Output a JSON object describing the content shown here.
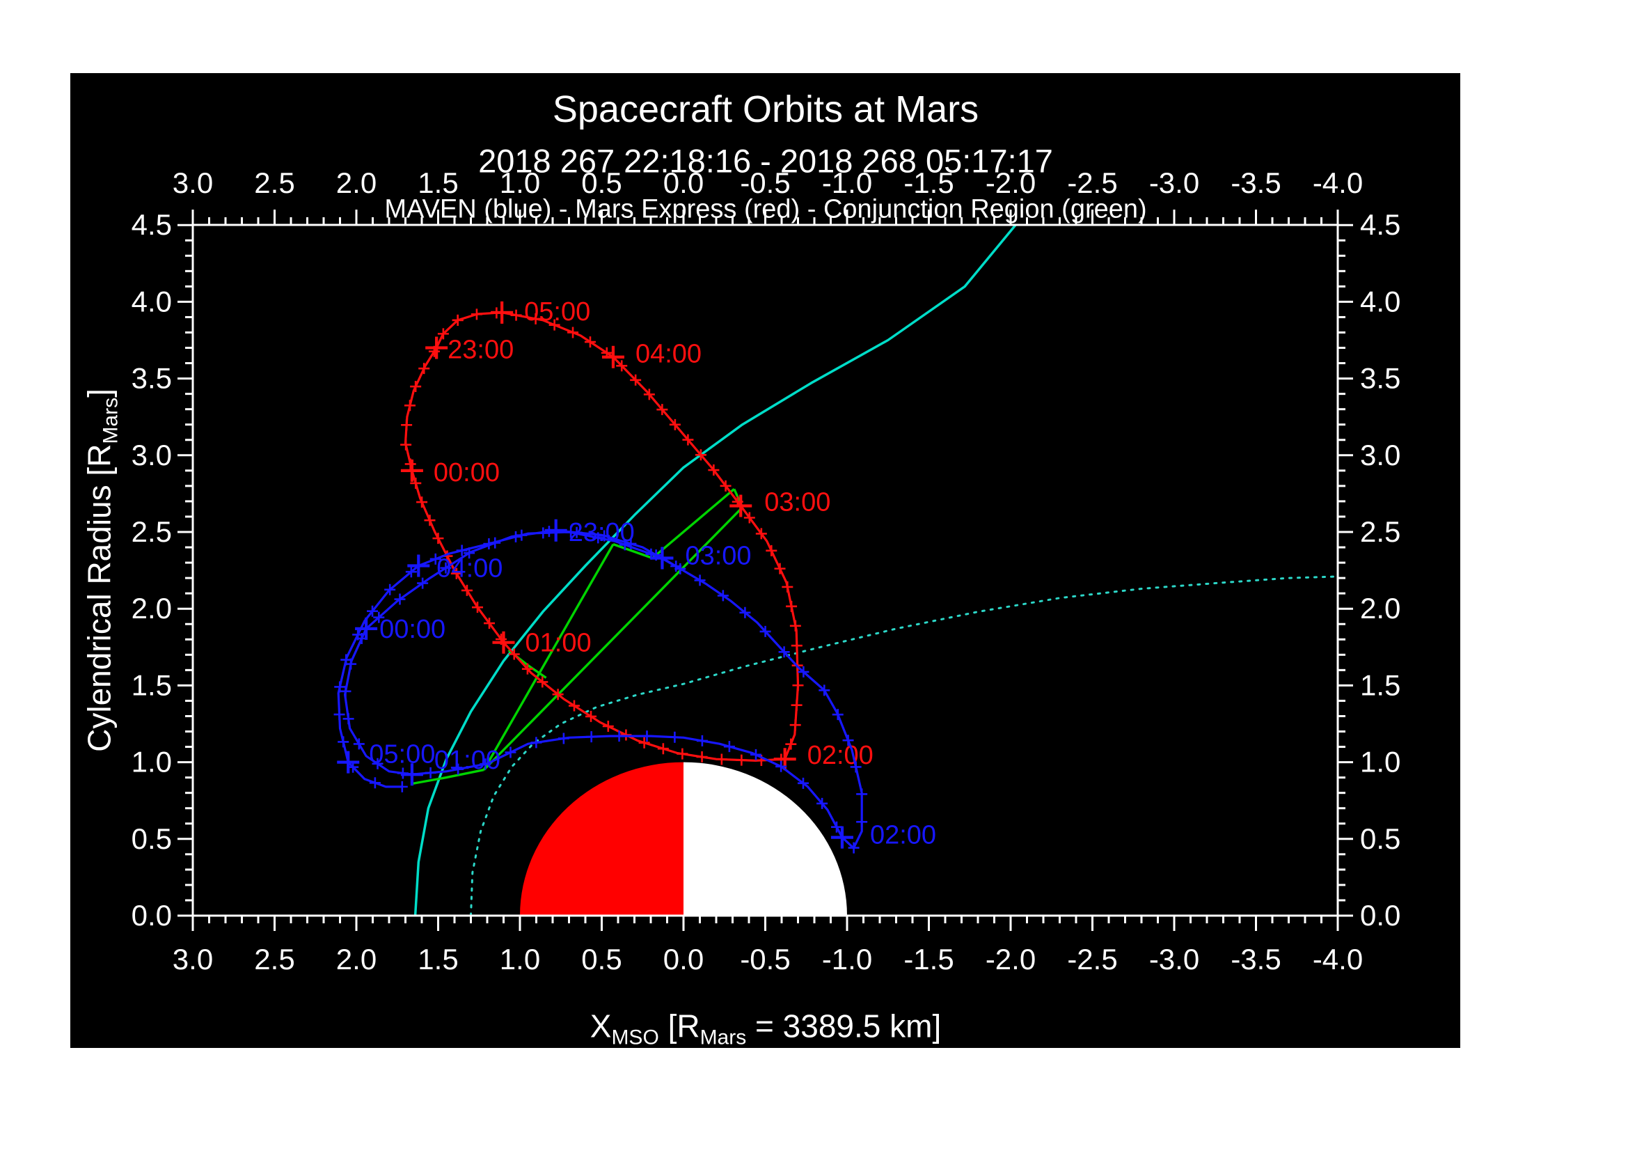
{
  "header": {
    "title": "Spacecraft Orbits at Mars",
    "date_range": "2018 267 22:18:16 - 2018 268 05:17:17",
    "legend": "MAVEN (blue) - Mars Express (red) - Conjunction Region (green)"
  },
  "axes": {
    "x": {
      "parts": [
        "X",
        "MSO",
        " [R",
        "Mars",
        " = 3389.5 km]"
      ],
      "range": [
        3.0,
        -4.0
      ],
      "major_step": 0.5,
      "minor_step": 0.1,
      "tick_labels": [
        "3.0",
        "2.5",
        "2.0",
        "1.5",
        "1.0",
        "0.5",
        "0.0",
        "-0.5",
        "-1.0",
        "-1.5",
        "-2.0",
        "-2.5",
        "-3.0",
        "-3.5",
        "-4.0"
      ]
    },
    "y": {
      "parts": [
        "Cylendrical Radius [R",
        "Mars",
        "]"
      ],
      "range": [
        0.0,
        4.5
      ],
      "major_step": 0.5,
      "minor_step": 0.1,
      "tick_labels": [
        "0.0",
        "0.5",
        "1.0",
        "1.5",
        "2.0",
        "2.5",
        "3.0",
        "3.5",
        "4.0",
        "4.5"
      ]
    }
  },
  "colors": {
    "background_page": "#ffffff",
    "background_plot": "#000000",
    "axis": "#ffffff",
    "maven": "#1717ff",
    "mars_express": "#ff0f0f",
    "conjunction": "#00d400",
    "bow_shock": "#00ddc8",
    "boundary_dotted": "#2cd7c8",
    "mars_dayside": "#ff0000",
    "mars_nightside": "#ffffff"
  },
  "chart_data": {
    "type": "line",
    "title": "Spacecraft Orbits at Mars",
    "subtitle": "2018 267 22:18:16 - 2018 268 05:17:17",
    "legend_line": "MAVEN (blue) - Mars Express (red) - Conjunction Region (green)",
    "xlabel": "X_MSO [R_Mars = 3389.5 km]",
    "ylabel": "Cylendrical Radius [R_Mars]",
    "xlim": [
      3.0,
      -4.0
    ],
    "ylim": [
      0.0,
      4.5
    ],
    "grid": false,
    "mars": {
      "center": [
        0.0,
        0.0
      ],
      "radius_rmars": 1.0,
      "dayside_half": "left (+X, red)",
      "nightside_half": "right (-X, white)"
    },
    "series": [
      {
        "name": "Mars Express",
        "color_key": "mars_express",
        "minor_tick_count": 66,
        "points": [
          [
            1.38,
            3.88
          ],
          [
            1.47,
            3.79
          ],
          [
            1.51,
            3.7
          ],
          [
            1.58,
            3.58
          ],
          [
            1.65,
            3.42
          ],
          [
            1.69,
            3.25
          ],
          [
            1.7,
            3.08
          ],
          [
            1.66,
            2.9
          ],
          [
            1.61,
            2.72
          ],
          [
            1.52,
            2.5
          ],
          [
            1.4,
            2.25
          ],
          [
            1.26,
            2.01
          ],
          [
            1.1,
            1.78
          ],
          [
            0.93,
            1.58
          ],
          [
            0.73,
            1.41
          ],
          [
            0.51,
            1.26
          ],
          [
            0.28,
            1.14
          ],
          [
            0.04,
            1.06
          ],
          [
            -0.2,
            1.02
          ],
          [
            -0.44,
            1.01
          ],
          [
            -0.62,
            1.02
          ],
          [
            -0.68,
            1.18
          ],
          [
            -0.7,
            1.5
          ],
          [
            -0.69,
            1.86
          ],
          [
            -0.63,
            2.17
          ],
          [
            -0.51,
            2.44
          ],
          [
            -0.35,
            2.67
          ],
          [
            -0.18,
            2.91
          ],
          [
            0.02,
            3.16
          ],
          [
            0.22,
            3.41
          ],
          [
            0.43,
            3.64
          ],
          [
            0.63,
            3.78
          ],
          [
            0.86,
            3.88
          ],
          [
            1.11,
            3.93
          ],
          [
            1.26,
            3.92
          ],
          [
            1.38,
            3.88
          ]
        ],
        "hour_markers": [
          {
            "t": "23:00",
            "x": 1.51,
            "y": 3.7,
            "dx": 16,
            "dy": 2
          },
          {
            "t": "00:00",
            "x": 1.66,
            "y": 2.9,
            "dx": 31,
            "dy": 2
          },
          {
            "t": "01:00",
            "x": 1.1,
            "y": 1.78,
            "dx": 31,
            "dy": 0
          },
          {
            "t": "02:00",
            "x": -0.62,
            "y": 1.02,
            "dx": 32,
            "dy": -6
          },
          {
            "t": "03:00",
            "x": -0.35,
            "y": 2.67,
            "dx": 34,
            "dy": -6
          },
          {
            "t": "04:00",
            "x": 0.43,
            "y": 3.64,
            "dx": 32,
            "dy": -5
          },
          {
            "t": "05:00",
            "x": 1.11,
            "y": 3.93,
            "dx": 32,
            "dy": -2
          }
        ]
      },
      {
        "name": "MAVEN",
        "color_key": "maven",
        "minor_tick_count": 70,
        "points": [
          [
            0.02,
            2.26
          ],
          [
            0.25,
            2.4
          ],
          [
            0.5,
            2.48
          ],
          [
            0.78,
            2.51
          ],
          [
            1.05,
            2.47
          ],
          [
            1.3,
            2.37
          ],
          [
            1.55,
            2.2
          ],
          [
            1.75,
            2.05
          ],
          [
            1.94,
            1.87
          ],
          [
            2.03,
            1.66
          ],
          [
            2.07,
            1.44
          ],
          [
            2.04,
            1.22
          ],
          [
            1.94,
            1.04
          ],
          [
            1.8,
            0.94
          ],
          [
            1.66,
            0.92
          ],
          [
            1.45,
            0.94
          ],
          [
            1.2,
            0.99
          ],
          [
            0.95,
            1.12
          ],
          [
            0.7,
            1.16
          ],
          [
            0.45,
            1.17
          ],
          [
            0.2,
            1.17
          ],
          [
            0.0,
            1.16
          ],
          [
            -0.22,
            1.12
          ],
          [
            -0.42,
            1.06
          ],
          [
            -0.6,
            0.97
          ],
          [
            -0.76,
            0.84
          ],
          [
            -0.88,
            0.69
          ],
          [
            -0.97,
            0.51
          ],
          [
            -1.04,
            0.44
          ],
          [
            -1.09,
            0.55
          ],
          [
            -1.09,
            0.8
          ],
          [
            -1.03,
            1.08
          ],
          [
            -0.94,
            1.32
          ],
          [
            -0.86,
            1.47
          ],
          [
            -0.7,
            1.62
          ],
          [
            -0.45,
            1.91
          ],
          [
            -0.29,
            2.05
          ],
          [
            -0.14,
            2.16
          ],
          [
            0.13,
            2.33
          ],
          [
            0.42,
            2.44
          ],
          [
            0.7,
            2.5
          ],
          [
            0.95,
            2.49
          ],
          [
            1.2,
            2.42
          ],
          [
            1.43,
            2.36
          ],
          [
            1.62,
            2.28
          ],
          [
            1.8,
            2.12
          ],
          [
            1.95,
            1.92
          ],
          [
            2.06,
            1.68
          ],
          [
            2.11,
            1.45
          ],
          [
            2.1,
            1.22
          ],
          [
            2.05,
            1.0
          ],
          [
            1.95,
            0.89
          ],
          [
            1.82,
            0.84
          ],
          [
            1.72,
            0.84
          ]
        ],
        "hour_markers": [
          {
            "t": "23:00",
            "x": 0.78,
            "y": 2.51,
            "dx": 18,
            "dy": 2
          },
          {
            "t": "00:00",
            "x": 1.94,
            "y": 1.87,
            "dx": 19,
            "dy": 0
          },
          {
            "t": "01:00",
            "x": 1.66,
            "y": 0.92,
            "dx": 32,
            "dy": -21
          },
          {
            "t": "02:00",
            "x": -0.97,
            "y": 0.51,
            "dx": 40,
            "dy": -4
          },
          {
            "t": "03:00",
            "x": 0.13,
            "y": 2.33,
            "dx": 33,
            "dy": -4
          },
          {
            "t": "04:00",
            "x": 1.62,
            "y": 2.28,
            "dx": 26,
            "dy": 3
          },
          {
            "t": "05:00",
            "x": 2.05,
            "y": 1.0,
            "dx": 30,
            "dy": -12
          }
        ]
      },
      {
        "name": "Conjunction Region",
        "color_key": "conjunction",
        "segments": [
          [
            [
              1.66,
              0.86
            ],
            [
              1.45,
              0.9
            ],
            [
              1.22,
              0.95
            ]
          ],
          [
            [
              1.22,
              0.95
            ],
            [
              0.43,
              2.42
            ]
          ],
          [
            [
              0.43,
              2.42
            ],
            [
              0.19,
              2.33
            ]
          ],
          [
            [
              0.19,
              2.33
            ],
            [
              -0.31,
              2.78
            ]
          ],
          [
            [
              -0.31,
              2.78
            ],
            [
              -0.36,
              2.66
            ]
          ],
          [
            [
              -0.36,
              2.66
            ],
            [
              1.22,
              0.95
            ]
          ],
          [
            [
              1.07,
              1.73
            ],
            [
              0.95,
              1.63
            ],
            [
              0.84,
              1.55
            ]
          ]
        ]
      },
      {
        "name": "Bow shock boundary (solid)",
        "color_key": "bow_shock",
        "points": [
          [
            1.64,
            0.0
          ],
          [
            1.62,
            0.35
          ],
          [
            1.56,
            0.7
          ],
          [
            1.45,
            1.02
          ],
          [
            1.3,
            1.33
          ],
          [
            1.1,
            1.66
          ],
          [
            0.86,
            1.98
          ],
          [
            0.6,
            2.28
          ],
          [
            0.3,
            2.61
          ],
          [
            0.0,
            2.92
          ],
          [
            -0.36,
            3.2
          ],
          [
            -0.78,
            3.47
          ],
          [
            -1.25,
            3.75
          ],
          [
            -1.72,
            4.1
          ],
          [
            -2.03,
            4.5
          ]
        ]
      },
      {
        "name": "MPB boundary (dotted)",
        "color_key": "boundary_dotted",
        "dotted": true,
        "points": [
          [
            1.3,
            0.0
          ],
          [
            1.29,
            0.28
          ],
          [
            1.24,
            0.55
          ],
          [
            1.16,
            0.78
          ],
          [
            1.05,
            0.97
          ],
          [
            0.92,
            1.12
          ],
          [
            0.75,
            1.25
          ],
          [
            0.53,
            1.36
          ],
          [
            0.28,
            1.44
          ],
          [
            0.0,
            1.51
          ],
          [
            -0.36,
            1.62
          ],
          [
            -0.8,
            1.74
          ],
          [
            -1.3,
            1.87
          ],
          [
            -1.8,
            1.98
          ],
          [
            -2.3,
            2.07
          ],
          [
            -2.8,
            2.13
          ],
          [
            -3.3,
            2.17
          ],
          [
            -3.7,
            2.2
          ],
          [
            -4.0,
            2.21
          ]
        ]
      }
    ]
  }
}
